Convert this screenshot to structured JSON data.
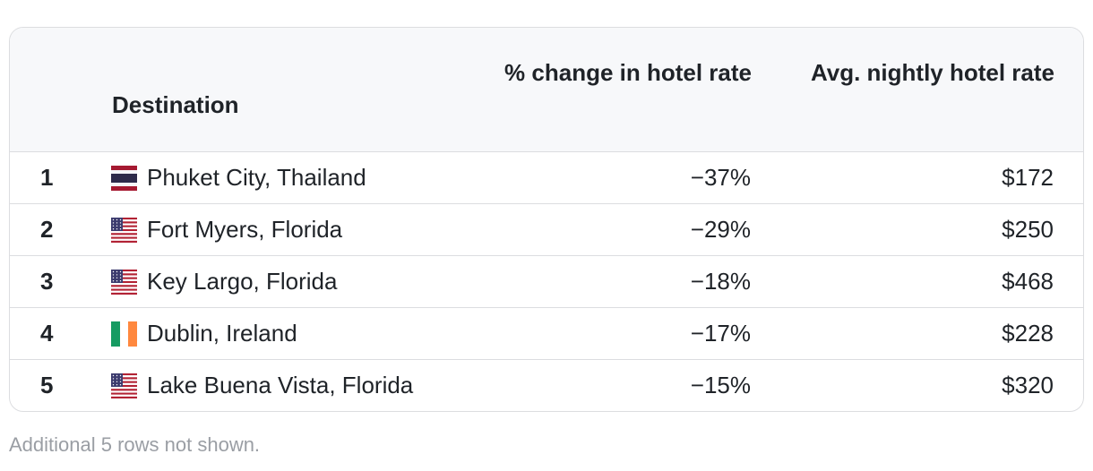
{
  "table": {
    "columns": [
      "Destination",
      "% change in hotel rate",
      "Avg. nightly hotel rate"
    ],
    "rows": [
      [
        "1",
        "Phuket City, Thailand",
        "−37%",
        "$172"
      ],
      [
        "2",
        "Fort Myers, Florida",
        "−29%",
        "$250"
      ],
      [
        "3",
        "Key Largo, Florida",
        "−18%",
        "$468"
      ],
      [
        "4",
        "Dublin, Ireland",
        "−17%",
        "$228"
      ],
      [
        "5",
        "Lake Buena Vista, Florida",
        "−15%",
        "$320"
      ]
    ]
  },
  "footer": {
    "note": "Additional 5 rows not shown."
  }
}
